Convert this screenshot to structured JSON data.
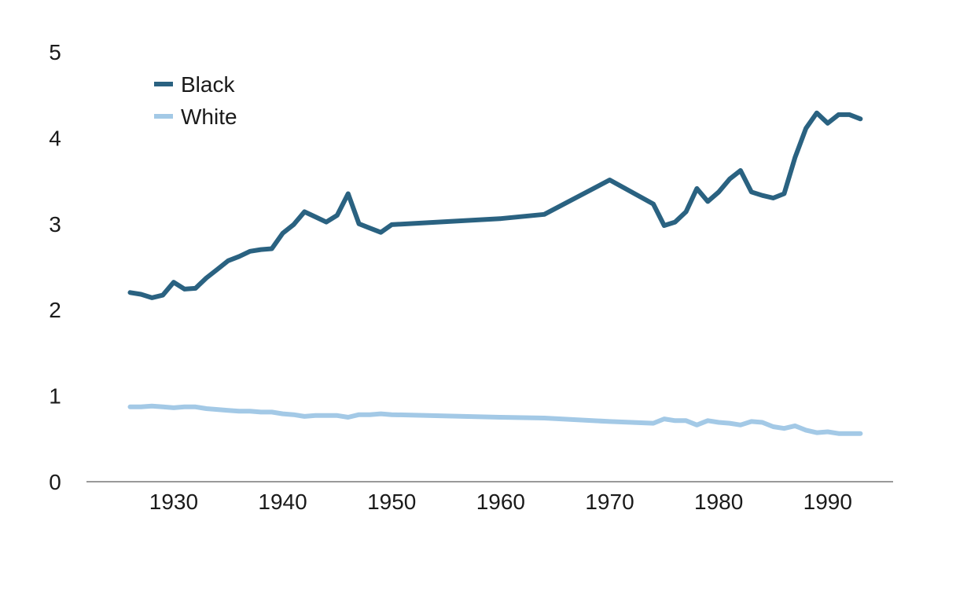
{
  "chart_data": {
    "type": "line",
    "title": "",
    "xlabel": "",
    "ylabel": "",
    "xlim": [
      1922,
      1996
    ],
    "ylim": [
      0,
      5
    ],
    "x_ticks": [
      1930,
      1940,
      1950,
      1960,
      1970,
      1980,
      1990
    ],
    "y_ticks": [
      0,
      1,
      2,
      3,
      4,
      5
    ],
    "grid": false,
    "legend_position": "top-left",
    "series": [
      {
        "name": "Black",
        "color": "#2a6281",
        "points": [
          [
            1926,
            2.2
          ],
          [
            1927,
            2.18
          ],
          [
            1928,
            2.14
          ],
          [
            1929,
            2.17
          ],
          [
            1930,
            2.32
          ],
          [
            1931,
            2.24
          ],
          [
            1932,
            2.25
          ],
          [
            1933,
            2.37
          ],
          [
            1934,
            2.47
          ],
          [
            1935,
            2.57
          ],
          [
            1936,
            2.62
          ],
          [
            1937,
            2.68
          ],
          [
            1938,
            2.7
          ],
          [
            1939,
            2.71
          ],
          [
            1940,
            2.89
          ],
          [
            1941,
            2.99
          ],
          [
            1942,
            3.14
          ],
          [
            1943,
            3.08
          ],
          [
            1944,
            3.02
          ],
          [
            1945,
            3.1
          ],
          [
            1946,
            3.35
          ],
          [
            1947,
            3.0
          ],
          [
            1948,
            2.95
          ],
          [
            1949,
            2.9
          ],
          [
            1950,
            2.99
          ],
          [
            1960,
            3.06
          ],
          [
            1964,
            3.11
          ],
          [
            1970,
            3.51
          ],
          [
            1974,
            3.23
          ],
          [
            1975,
            2.98
          ],
          [
            1976,
            3.02
          ],
          [
            1977,
            3.14
          ],
          [
            1978,
            3.41
          ],
          [
            1979,
            3.26
          ],
          [
            1980,
            3.37
          ],
          [
            1981,
            3.52
          ],
          [
            1982,
            3.62
          ],
          [
            1983,
            3.37
          ],
          [
            1984,
            3.33
          ],
          [
            1985,
            3.3
          ],
          [
            1986,
            3.35
          ],
          [
            1987,
            3.77
          ],
          [
            1988,
            4.11
          ],
          [
            1989,
            4.29
          ],
          [
            1990,
            4.17
          ],
          [
            1991,
            4.27
          ],
          [
            1992,
            4.27
          ],
          [
            1993,
            4.22
          ]
        ]
      },
      {
        "name": "White",
        "color": "#a3c9e6",
        "points": [
          [
            1926,
            0.87
          ],
          [
            1927,
            0.87
          ],
          [
            1928,
            0.88
          ],
          [
            1929,
            0.87
          ],
          [
            1930,
            0.86
          ],
          [
            1931,
            0.87
          ],
          [
            1932,
            0.87
          ],
          [
            1933,
            0.85
          ],
          [
            1934,
            0.84
          ],
          [
            1935,
            0.83
          ],
          [
            1936,
            0.82
          ],
          [
            1937,
            0.82
          ],
          [
            1938,
            0.81
          ],
          [
            1939,
            0.81
          ],
          [
            1940,
            0.79
          ],
          [
            1941,
            0.78
          ],
          [
            1942,
            0.76
          ],
          [
            1943,
            0.77
          ],
          [
            1944,
            0.77
          ],
          [
            1945,
            0.77
          ],
          [
            1946,
            0.75
          ],
          [
            1947,
            0.78
          ],
          [
            1948,
            0.78
          ],
          [
            1949,
            0.79
          ],
          [
            1950,
            0.78
          ],
          [
            1960,
            0.75
          ],
          [
            1964,
            0.74
          ],
          [
            1970,
            0.7
          ],
          [
            1974,
            0.68
          ],
          [
            1975,
            0.73
          ],
          [
            1976,
            0.71
          ],
          [
            1977,
            0.71
          ],
          [
            1978,
            0.66
          ],
          [
            1979,
            0.71
          ],
          [
            1980,
            0.69
          ],
          [
            1981,
            0.68
          ],
          [
            1982,
            0.66
          ],
          [
            1983,
            0.7
          ],
          [
            1984,
            0.69
          ],
          [
            1985,
            0.64
          ],
          [
            1986,
            0.62
          ],
          [
            1987,
            0.65
          ],
          [
            1988,
            0.6
          ],
          [
            1989,
            0.57
          ],
          [
            1990,
            0.58
          ],
          [
            1991,
            0.56
          ],
          [
            1992,
            0.56
          ],
          [
            1993,
            0.56
          ]
        ]
      }
    ]
  }
}
